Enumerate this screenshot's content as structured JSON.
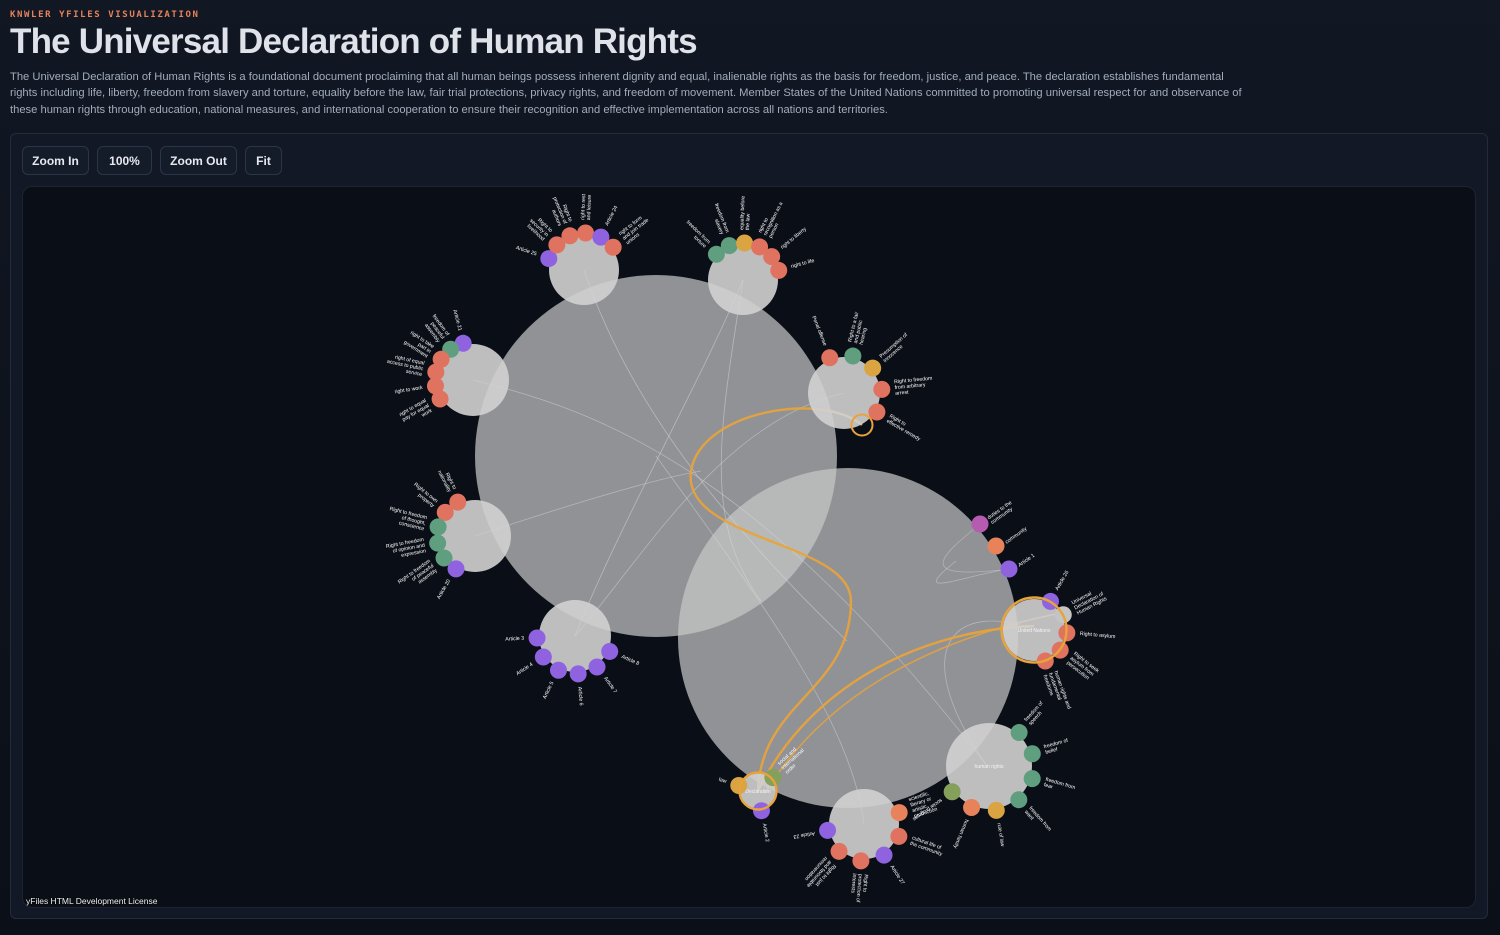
{
  "header": {
    "eyebrow": "KNWLER YFILES VISUALIZATION",
    "title": "The Universal Declaration of Human Rights",
    "description": "The Universal Declaration of Human Rights is a foundational document proclaiming that all human beings possess inherent dignity and equal, inalienable rights as the basis for freedom, justice, and peace. The declaration establishes fundamental rights including life, liberty, freedom from slavery and torture, equality before the law, fair trial protections, privacy rights, and freedom of movement. Member States of the United Nations committed to promoting universal respect for and observance of these human rights through education, national measures, and international cooperation to ensure their recognition and effective implementation across all nations and territories."
  },
  "toolbar": {
    "zoom_in": "Zoom In",
    "zoom_level": "100%",
    "zoom_out": "Zoom Out",
    "fit": "Fit"
  },
  "canvas": {
    "license": "yFiles HTML Development License"
  },
  "colors": {
    "salmon": "#e0735f",
    "green": "#5f9e7e",
    "purple": "#8f62e0",
    "gold": "#d9a441",
    "orange": "#e8825a",
    "magenta": "#b55bb0",
    "olive": "#84a05a",
    "highlight": "#e8a33a",
    "group_fill": "#c4c4c4"
  },
  "groups": [
    {
      "id": "A",
      "label": "",
      "level": "top",
      "children": [
        {
          "label": "Article 25",
          "color": "purple"
        },
        {
          "label": "Right to security in livelihood",
          "color": "salmon"
        },
        {
          "label": "Right to protection of authors",
          "color": "salmon"
        },
        {
          "label": "right to rest and leisure",
          "color": "salmon"
        },
        {
          "label": "Article 24",
          "color": "purple"
        },
        {
          "label": "right to form and join trade unions",
          "color": "salmon"
        }
      ]
    },
    {
      "id": "B",
      "label": "",
      "level": "top",
      "children": [
        {
          "label": "freedom from torture",
          "color": "green"
        },
        {
          "label": "freedom from slavery",
          "color": "green"
        },
        {
          "label": "equality before the law",
          "color": "gold"
        },
        {
          "label": "right to recognition as a person",
          "color": "salmon"
        },
        {
          "label": "right to liberty",
          "color": "salmon"
        },
        {
          "label": "right to life",
          "color": "salmon"
        }
      ]
    },
    {
      "id": "C",
      "label": "",
      "level": "top",
      "children": [
        {
          "label": "Article 21",
          "color": "purple"
        },
        {
          "label": "freedom of peaceful assembly",
          "color": "green"
        },
        {
          "label": "right to take part in government",
          "color": "salmon"
        },
        {
          "label": "right of equal access to public service",
          "color": "salmon"
        },
        {
          "label": "right to work",
          "color": "salmon"
        },
        {
          "label": "right to equal pay for equal work",
          "color": "salmon"
        }
      ]
    },
    {
      "id": "D",
      "label": "",
      "level": "top",
      "children": [
        {
          "label": "Penal offense",
          "color": "salmon"
        },
        {
          "label": "Right to a fair and public hearing",
          "color": "green"
        },
        {
          "label": "Presumption of innocence",
          "color": "gold"
        },
        {
          "label": "Right to freedom from arbitrary arrest",
          "color": "salmon"
        },
        {
          "label": "Right to effective remedy",
          "color": "salmon"
        }
      ]
    },
    {
      "id": "E",
      "label": "",
      "level": "top",
      "children": [
        {
          "label": "Right to nationality",
          "color": "salmon"
        },
        {
          "label": "Right to own property",
          "color": "salmon"
        },
        {
          "label": "Right to freedom of thought, conscience",
          "color": "green"
        },
        {
          "label": "Right to freedom of opinion and expression",
          "color": "green"
        },
        {
          "label": "Right to freedom of peaceful assembly",
          "color": "green"
        },
        {
          "label": "Article 20",
          "color": "purple"
        }
      ]
    },
    {
      "id": "F",
      "label": "",
      "level": "top",
      "children": [
        {
          "label": "Article 3",
          "color": "purple"
        },
        {
          "label": "Article 4",
          "color": "purple"
        },
        {
          "label": "Article 5",
          "color": "purple"
        },
        {
          "label": "Article 6",
          "color": "purple"
        },
        {
          "label": "Article 7",
          "color": "purple"
        },
        {
          "label": "Article 8",
          "color": "purple"
        }
      ]
    },
    {
      "id": "G",
      "label": "",
      "level": "bottom",
      "children": [
        {
          "label": "duties to the community",
          "color": "magenta"
        },
        {
          "label": "community",
          "color": "orange"
        },
        {
          "label": "Article 1",
          "color": "purple"
        }
      ]
    },
    {
      "id": "H",
      "label": "United Nations",
      "level": "bottom",
      "children": [
        {
          "label": "Article 26",
          "color": "purple"
        },
        {
          "label": "Universal Declaration of Human Rights",
          "color": "group_fill"
        },
        {
          "label": "Right to asylum",
          "color": "salmon"
        },
        {
          "label": "Right to seek asylum from persecution",
          "color": "salmon"
        },
        {
          "label": "human rights and fundamental freedoms",
          "color": "salmon"
        }
      ]
    },
    {
      "id": "I",
      "label": "human rights",
      "level": "bottom",
      "children": [
        {
          "label": "freedom of speech",
          "color": "green"
        },
        {
          "label": "freedom of belief",
          "color": "green"
        },
        {
          "label": "freedom from fear",
          "color": "green"
        },
        {
          "label": "freedom from want",
          "color": "green"
        },
        {
          "label": "rule of law",
          "color": "gold"
        },
        {
          "label": "human family",
          "color": "orange"
        },
        {
          "label": "social progress",
          "color": "olive"
        }
      ]
    },
    {
      "id": "J",
      "label": "",
      "level": "bottom",
      "children": [
        {
          "label": "scientific, literary or artistic production",
          "color": "orange"
        },
        {
          "label": "cultural life of the community",
          "color": "salmon"
        },
        {
          "label": "Article 27",
          "color": "purple"
        },
        {
          "label": "Right to protection of interests",
          "color": "salmon"
        },
        {
          "label": "Right to just and favourable remuneration",
          "color": "salmon"
        },
        {
          "label": "Article 23",
          "color": "purple"
        }
      ]
    },
    {
      "id": "K",
      "label": "Declaration",
      "level": "bottom",
      "children": [
        {
          "label": "law",
          "color": "gold"
        },
        {
          "label": "social and international order",
          "color": "olive"
        },
        {
          "label": "Article 2",
          "color": "purple"
        }
      ]
    }
  ]
}
